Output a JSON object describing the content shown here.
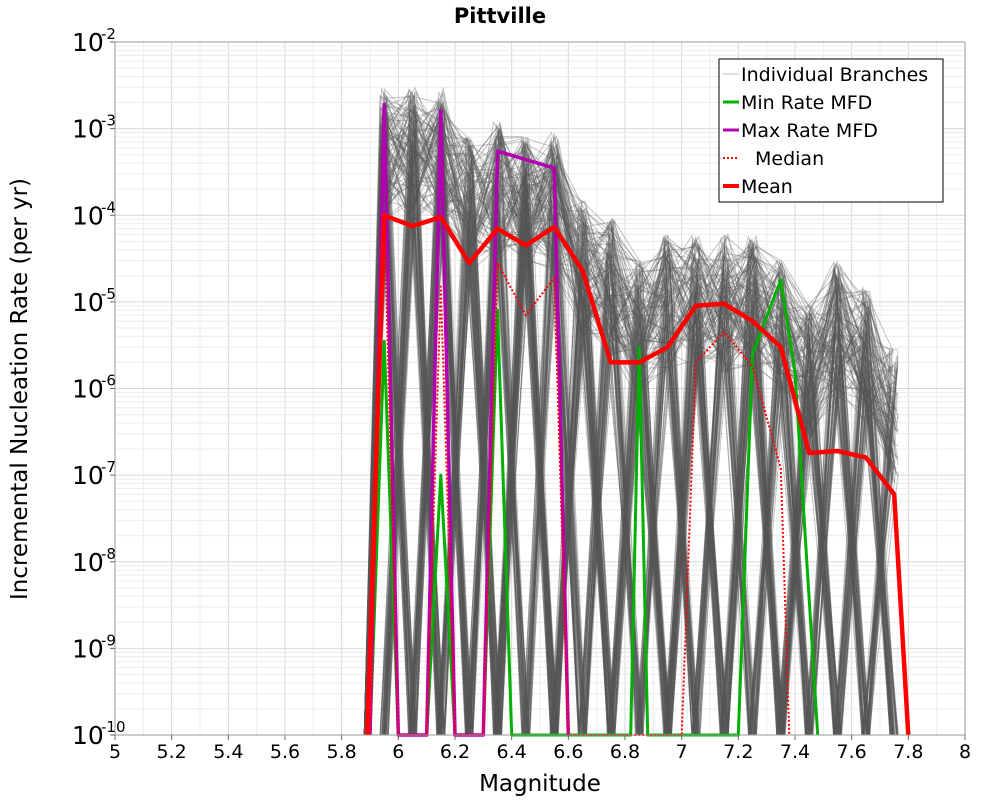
{
  "chart_data": {
    "type": "line",
    "title": "Pittville",
    "xlabel": "Magnitude",
    "ylabel": "Incremental Nucleation Rate (per yr)",
    "xlim": [
      5,
      8
    ],
    "ylim": [
      1e-10,
      0.01
    ],
    "yscale": "log",
    "grid": true,
    "legend_position": "top-right",
    "x_ticks": [
      "5",
      "5.2",
      "5.4",
      "5.6",
      "5.8",
      "6",
      "6.2",
      "6.4",
      "6.6",
      "6.8",
      "7",
      "7.2",
      "7.4",
      "7.6",
      "7.8",
      "8"
    ],
    "y_ticks": [
      {
        "base": "10",
        "exp": "-10"
      },
      {
        "base": "10",
        "exp": "-9"
      },
      {
        "base": "10",
        "exp": "-8"
      },
      {
        "base": "10",
        "exp": "-7"
      },
      {
        "base": "10",
        "exp": "-6"
      },
      {
        "base": "10",
        "exp": "-5"
      },
      {
        "base": "10",
        "exp": "-4"
      },
      {
        "base": "10",
        "exp": "-3"
      },
      {
        "base": "10",
        "exp": "-2"
      }
    ],
    "legend": [
      {
        "label": "Individual Branches",
        "color": "#bdbdbd",
        "style": "solid"
      },
      {
        "label": "Min Rate MFD",
        "color": "#00b000",
        "style": "solid"
      },
      {
        "label": "Max Rate MFD",
        "color": "#b000b0",
        "style": "solid"
      },
      {
        "label": "Median",
        "color": "#ff0000",
        "style": "dotted"
      },
      {
        "label": "Mean",
        "color": "#ff0000",
        "style": "solid"
      }
    ],
    "branch_color": "#555555",
    "branch_template": {
      "x": [
        5.88,
        5.95,
        6.05,
        6.15,
        6.25,
        6.35,
        6.45,
        6.55,
        6.65,
        6.75,
        6.85,
        6.95,
        7.05,
        7.15,
        7.25,
        7.35,
        7.45,
        7.55,
        7.65,
        7.75
      ],
      "y": [
        1e-10,
        0.001,
        0.001,
        0.001,
        0.0003,
        0.0004,
        0.0003,
        0.0003,
        5e-05,
        3e-05,
        1e-05,
        2e-05,
        2e-05,
        2e-05,
        2e-05,
        1e-05,
        3e-06,
        1e-05,
        5e-06,
        1e-06
      ]
    },
    "series": [
      {
        "name": "Min Rate MFD",
        "color": "#00b000",
        "x": [
          5.9,
          5.95,
          6.0,
          6.1,
          6.15,
          6.2,
          6.3,
          6.35,
          6.4,
          6.82,
          6.85,
          6.88,
          7.2,
          7.25,
          7.35,
          7.4,
          7.48
        ],
        "y": [
          1e-10,
          3.5e-06,
          1e-10,
          1e-10,
          1e-07,
          1e-10,
          1e-10,
          8e-06,
          1e-10,
          1e-10,
          3e-06,
          1e-10,
          1e-10,
          2.5e-06,
          1.8e-05,
          1.5e-06,
          1e-10
        ]
      },
      {
        "name": "Max Rate MFD",
        "color": "#b000b0",
        "x": [
          5.9,
          5.95,
          6.0,
          6.1,
          6.15,
          6.2,
          6.3,
          6.35,
          6.55,
          6.6
        ],
        "y": [
          1e-10,
          0.0019,
          1e-10,
          1e-10,
          0.0016,
          1e-10,
          1e-10,
          0.00055,
          0.00035,
          1e-10
        ]
      },
      {
        "name": "Median",
        "color": "#ff0000",
        "dashed": true,
        "x": [
          5.9,
          5.95,
          6.0,
          6.1,
          6.15,
          6.2,
          6.3,
          6.35,
          6.45,
          6.55,
          6.6,
          7.0,
          7.05,
          7.15,
          7.25,
          7.35,
          7.38
        ],
        "y": [
          1e-10,
          9e-05,
          1e-10,
          1e-10,
          1.5e-05,
          1e-10,
          1e-10,
          2.8e-05,
          7e-06,
          1.9e-05,
          1e-10,
          1e-10,
          2e-06,
          4.5e-06,
          1.8e-06,
          1.2e-07,
          1e-10
        ]
      },
      {
        "name": "Mean",
        "color": "#ff0000",
        "x": [
          5.89,
          5.95,
          6.05,
          6.15,
          6.25,
          6.35,
          6.45,
          6.55,
          6.65,
          6.75,
          6.85,
          6.95,
          7.05,
          7.15,
          7.25,
          7.35,
          7.45,
          7.55,
          7.65,
          7.75,
          7.8
        ],
        "y": [
          1e-10,
          0.0001,
          7.5e-05,
          9.5e-05,
          2.8e-05,
          7e-05,
          4.5e-05,
          7.3e-05,
          2.3e-05,
          2e-06,
          2e-06,
          3e-06,
          9e-06,
          9.5e-06,
          6e-06,
          3e-06,
          1.8e-07,
          1.9e-07,
          1.6e-07,
          6e-08,
          1e-10
        ]
      }
    ]
  }
}
